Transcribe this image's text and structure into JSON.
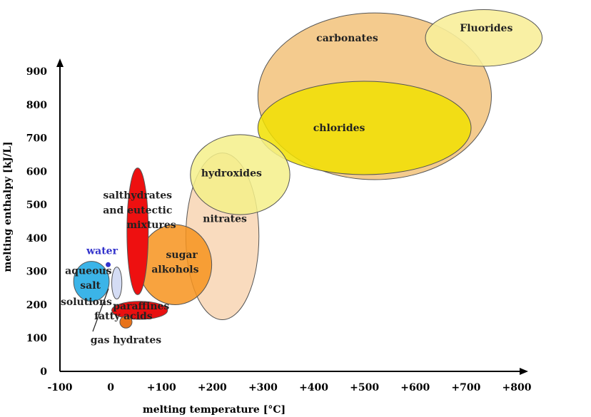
{
  "chart_data": {
    "type": "bubble",
    "title": "",
    "xlabel": "melting temperature [°C]",
    "ylabel": "melting enthalpy [kJ/L]",
    "xlim": [
      -100,
      800
    ],
    "ylim": [
      0,
      950
    ],
    "x_ticks": [
      {
        "value": -100,
        "label": "-100"
      },
      {
        "value": 0,
        "label": "0"
      },
      {
        "value": 100,
        "label": "+100"
      },
      {
        "value": 200,
        "label": "+200"
      },
      {
        "value": 300,
        "label": "+300"
      },
      {
        "value": 400,
        "label": "+400"
      },
      {
        "value": 500,
        "label": "+500"
      },
      {
        "value": 600,
        "label": "+600"
      },
      {
        "value": 700,
        "label": "+700"
      },
      {
        "value": 800,
        "label": "+800"
      }
    ],
    "y_ticks": [
      {
        "value": 0,
        "label": "0"
      },
      {
        "value": 100,
        "label": "100"
      },
      {
        "value": 200,
        "label": "200"
      },
      {
        "value": 300,
        "label": "300"
      },
      {
        "value": 400,
        "label": "400"
      },
      {
        "value": 500,
        "label": "500"
      },
      {
        "value": 600,
        "label": "600"
      },
      {
        "value": 700,
        "label": "700"
      },
      {
        "value": 800,
        "label": "800"
      },
      {
        "value": 900,
        "label": "900"
      }
    ],
    "grid": false,
    "regions": [
      {
        "name": "carbonates",
        "cx": 520,
        "cy": 825,
        "rx": 230,
        "ry": 250,
        "color": "#F2C27A",
        "opacity": 0.85
      },
      {
        "name": "Fluorides",
        "cx": 735,
        "cy": 1000,
        "rx": 115,
        "ry": 85,
        "color": "#F8EE9A",
        "opacity": 0.9
      },
      {
        "name": "chlorides",
        "cx": 500,
        "cy": 730,
        "rx": 210,
        "ry": 140,
        "color": "#F1E100",
        "opacity": 0.85
      },
      {
        "name": "nitrates",
        "cx": 220,
        "cy": 405,
        "rx": 72,
        "ry": 250,
        "color": "#F8D2AE",
        "opacity": 0.8
      },
      {
        "name": "hydroxides",
        "cx": 255,
        "cy": 590,
        "rx": 98,
        "ry": 120,
        "color": "#F5F08A",
        "opacity": 0.85
      },
      {
        "name": "sugar alkohols",
        "cx": 127,
        "cy": 320,
        "rx": 72,
        "ry": 120,
        "color": "#F7931D",
        "opacity": 0.85
      },
      {
        "name": "salthydrates and eutectic mixtures",
        "cx": 53,
        "cy": 420,
        "rx": 21,
        "ry": 190,
        "color": "#EE1010",
        "opacity": 1
      },
      {
        "name": "aqueous salt solutions",
        "cx": -38,
        "cy": 270,
        "rx": 35,
        "ry": 60,
        "color": "#3BB4E8",
        "opacity": 1
      },
      {
        "name": "fatty acids",
        "cx": 12,
        "cy": 265,
        "rx": 10,
        "ry": 48,
        "color": "#D4DCF4",
        "opacity": 1
      },
      {
        "name": "paraffines",
        "cx": 57,
        "cy": 183,
        "rx": 55,
        "ry": 27,
        "color": "#E81010",
        "opacity": 1
      },
      {
        "name": "gas hydrates",
        "cx": 30,
        "cy": 148,
        "rx": 12,
        "ry": 18,
        "color": "#E8731A",
        "opacity": 1
      }
    ],
    "points": [
      {
        "name": "water",
        "x": -5,
        "y": 320,
        "color": "#3333CC"
      }
    ],
    "annotations": [
      {
        "key": "carbonates",
        "text": "carbonates",
        "x": 466,
        "y": 990,
        "color": "#222222"
      },
      {
        "key": "fluorides",
        "text": "Fluorides",
        "x": 740,
        "y": 1020,
        "color": "#222222"
      },
      {
        "key": "chlorides",
        "text": "chlorides",
        "x": 450,
        "y": 720,
        "color": "#222222"
      },
      {
        "key": "hydroxides",
        "text": "hydroxides",
        "x": 238,
        "y": 585,
        "color": "#222222"
      },
      {
        "key": "nitrates",
        "text": "nitrates",
        "x": 225,
        "y": 448,
        "color": "#222222"
      },
      {
        "key": "salthydrates_1",
        "text": "salthydrates",
        "x": 53,
        "y": 518,
        "color": "#222222"
      },
      {
        "key": "salthydrates_2",
        "text": "and eutectic",
        "x": 53,
        "y": 474,
        "color": "#222222"
      },
      {
        "key": "salthydrates_3",
        "text": "mixtures",
        "x": 80,
        "y": 430,
        "color": "#222222"
      },
      {
        "key": "sugar_1",
        "text": "sugar",
        "x": 140,
        "y": 340,
        "color": "#222222"
      },
      {
        "key": "sugar_2",
        "text": "alkohols",
        "x": 127,
        "y": 296,
        "color": "#222222"
      },
      {
        "key": "water",
        "text": "water",
        "x": -17,
        "y": 352,
        "color": "#3333CC"
      },
      {
        "key": "aqueous_1",
        "text": "aqueous",
        "x": -44,
        "y": 292,
        "color": "#222222"
      },
      {
        "key": "aqueous_2",
        "text": "salt",
        "x": -40,
        "y": 248,
        "color": "#222222"
      },
      {
        "key": "aqueous_3",
        "text": "solutions",
        "x": -48,
        "y": 199,
        "color": "#222222"
      },
      {
        "key": "paraffines",
        "text": "paraffines",
        "x": 60,
        "y": 186,
        "color": "#222222"
      },
      {
        "key": "fatty",
        "text": "fatty acids",
        "x": 25,
        "y": 156,
        "color": "#222222"
      },
      {
        "key": "gas",
        "text": "gas hydrates",
        "x": 30,
        "y": 84,
        "color": "#222222"
      }
    ]
  }
}
